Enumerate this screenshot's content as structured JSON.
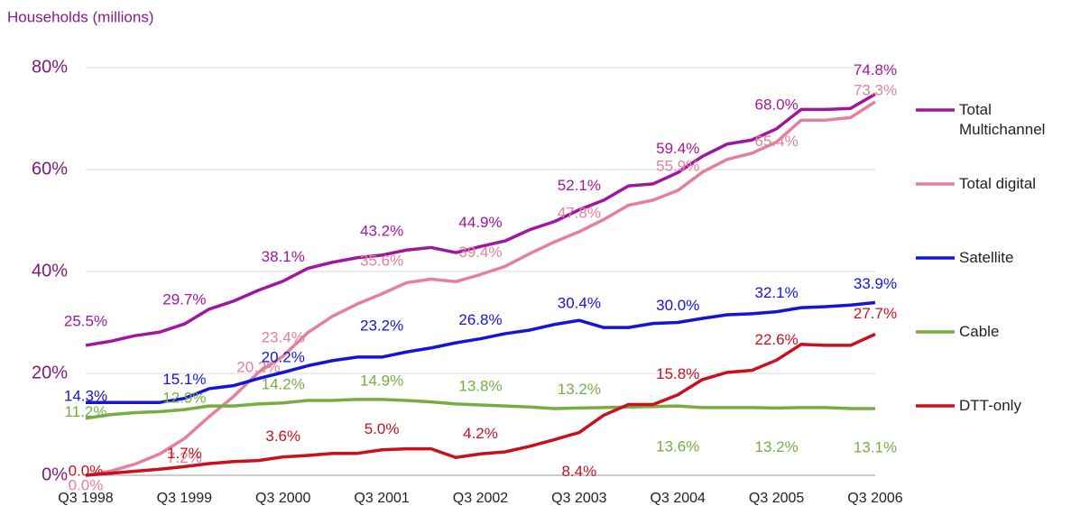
{
  "chart_data": {
    "type": "line",
    "y_label": "Households (millions)",
    "categories": [
      "Q3 1998",
      null,
      null,
      null,
      "Q3 1999",
      null,
      null,
      null,
      "Q3 2000",
      null,
      null,
      null,
      "Q3 2001",
      null,
      null,
      null,
      "Q3 2002",
      null,
      null,
      null,
      "Q3 2003",
      null,
      null,
      null,
      "Q3 2004",
      null,
      null,
      null,
      "Q3 2005",
      null,
      null,
      null,
      "Q3 2006"
    ],
    "ylim": [
      0,
      80
    ],
    "yticks": [
      {
        "value": 0,
        "label": "0%"
      },
      {
        "value": 20,
        "label": "20%"
      },
      {
        "value": 40,
        "label": "40%"
      },
      {
        "value": 60,
        "label": "60%"
      },
      {
        "value": 80,
        "label": "80%"
      }
    ],
    "grid": true,
    "series": [
      {
        "name": "Total Multichannel",
        "color": "#a0179f",
        "values": [
          25.5,
          26.3,
          27.4,
          28.1,
          29.7,
          32.6,
          34.2,
          36.3,
          38.1,
          40.6,
          41.8,
          42.7,
          43.2,
          44.2,
          44.7,
          43.7,
          44.9,
          46.0,
          48.2,
          49.8,
          52.1,
          54.0,
          56.8,
          57.2,
          59.4,
          62.6,
          65.0,
          65.8,
          68.0,
          71.8,
          71.8,
          72.0,
          74.8
        ],
        "value_labels": [
          "25.5%",
          null,
          null,
          null,
          "29.7%",
          null,
          null,
          null,
          "38.1%",
          null,
          null,
          null,
          "43.2%",
          null,
          null,
          null,
          "44.9%",
          null,
          null,
          null,
          "52.1%",
          null,
          null,
          null,
          "59.4%",
          null,
          null,
          null,
          "68.0%",
          null,
          null,
          null,
          "74.8%"
        ]
      },
      {
        "name": "Total digital",
        "color": "#e3809a",
        "values": [
          0.0,
          0.8,
          2.2,
          4.2,
          7.2,
          11.5,
          15.5,
          20.2,
          23.4,
          28.0,
          31.2,
          33.6,
          35.6,
          37.8,
          38.5,
          38.0,
          39.4,
          41.0,
          43.5,
          45.8,
          47.8,
          50.2,
          53.0,
          54.0,
          55.9,
          59.5,
          62.0,
          63.2,
          65.4,
          69.7,
          69.7,
          70.2,
          73.3
        ],
        "value_labels": [
          "0.0%",
          null,
          null,
          null,
          "7.2%",
          null,
          null,
          "20.2%",
          "23.4%",
          null,
          null,
          null,
          "35.6%",
          null,
          null,
          null,
          "39.4%",
          null,
          null,
          null,
          "47.8%",
          null,
          null,
          null,
          "55.9%",
          null,
          null,
          null,
          "65.4%",
          null,
          null,
          null,
          "73.3%"
        ]
      },
      {
        "name": "Satellite",
        "color": "#1414d8",
        "values": [
          14.3,
          14.3,
          14.3,
          14.3,
          15.1,
          17.0,
          17.6,
          19.0,
          20.2,
          21.5,
          22.5,
          23.2,
          23.2,
          24.2,
          25.0,
          26.0,
          26.8,
          27.8,
          28.5,
          29.6,
          30.4,
          29.0,
          29.0,
          29.8,
          30.0,
          30.8,
          31.5,
          31.7,
          32.1,
          32.9,
          33.1,
          33.4,
          33.9
        ],
        "value_labels": [
          "14.3%",
          null,
          null,
          null,
          "15.1%",
          null,
          null,
          null,
          "20.2%",
          null,
          null,
          null,
          "23.2%",
          null,
          null,
          null,
          "26.8%",
          null,
          null,
          null,
          "30.4%",
          null,
          null,
          null,
          "30.0%",
          null,
          null,
          null,
          "32.1%",
          null,
          null,
          null,
          "33.9%"
        ]
      },
      {
        "name": "Cable",
        "color": "#76ad42",
        "values": [
          11.2,
          11.9,
          12.3,
          12.5,
          12.9,
          13.6,
          13.6,
          14.0,
          14.2,
          14.7,
          14.7,
          14.9,
          14.9,
          14.7,
          14.4,
          14.0,
          13.8,
          13.6,
          13.4,
          13.1,
          13.2,
          13.3,
          13.4,
          13.5,
          13.6,
          13.3,
          13.3,
          13.3,
          13.2,
          13.3,
          13.3,
          13.1,
          13.1
        ],
        "value_labels": [
          "11.2%",
          null,
          null,
          null,
          "12.9%",
          null,
          null,
          null,
          "14.2%",
          null,
          null,
          null,
          "14.9%",
          null,
          null,
          null,
          "13.8%",
          null,
          null,
          null,
          "13.2%",
          null,
          null,
          null,
          "13.6%",
          null,
          null,
          null,
          "13.2%",
          null,
          null,
          null,
          "13.1%"
        ]
      },
      {
        "name": "DTT-only",
        "color": "#c8101e",
        "values": [
          0.0,
          0.4,
          0.8,
          1.2,
          1.7,
          2.3,
          2.7,
          2.9,
          3.6,
          3.9,
          4.3,
          4.3,
          5.0,
          5.2,
          5.2,
          3.5,
          4.2,
          4.6,
          5.7,
          7.0,
          8.4,
          11.8,
          13.9,
          13.9,
          15.8,
          18.8,
          20.2,
          20.6,
          22.6,
          25.7,
          25.5,
          25.5,
          27.7
        ],
        "value_labels": [
          "0.0%",
          null,
          null,
          null,
          "1.7%",
          null,
          null,
          null,
          "3.6%",
          null,
          null,
          null,
          "5.0%",
          null,
          null,
          null,
          "4.2%",
          null,
          null,
          null,
          "8.4%",
          null,
          null,
          null,
          "15.8%",
          null,
          null,
          null,
          "22.6%",
          null,
          null,
          null,
          "27.7%"
        ]
      }
    ]
  }
}
